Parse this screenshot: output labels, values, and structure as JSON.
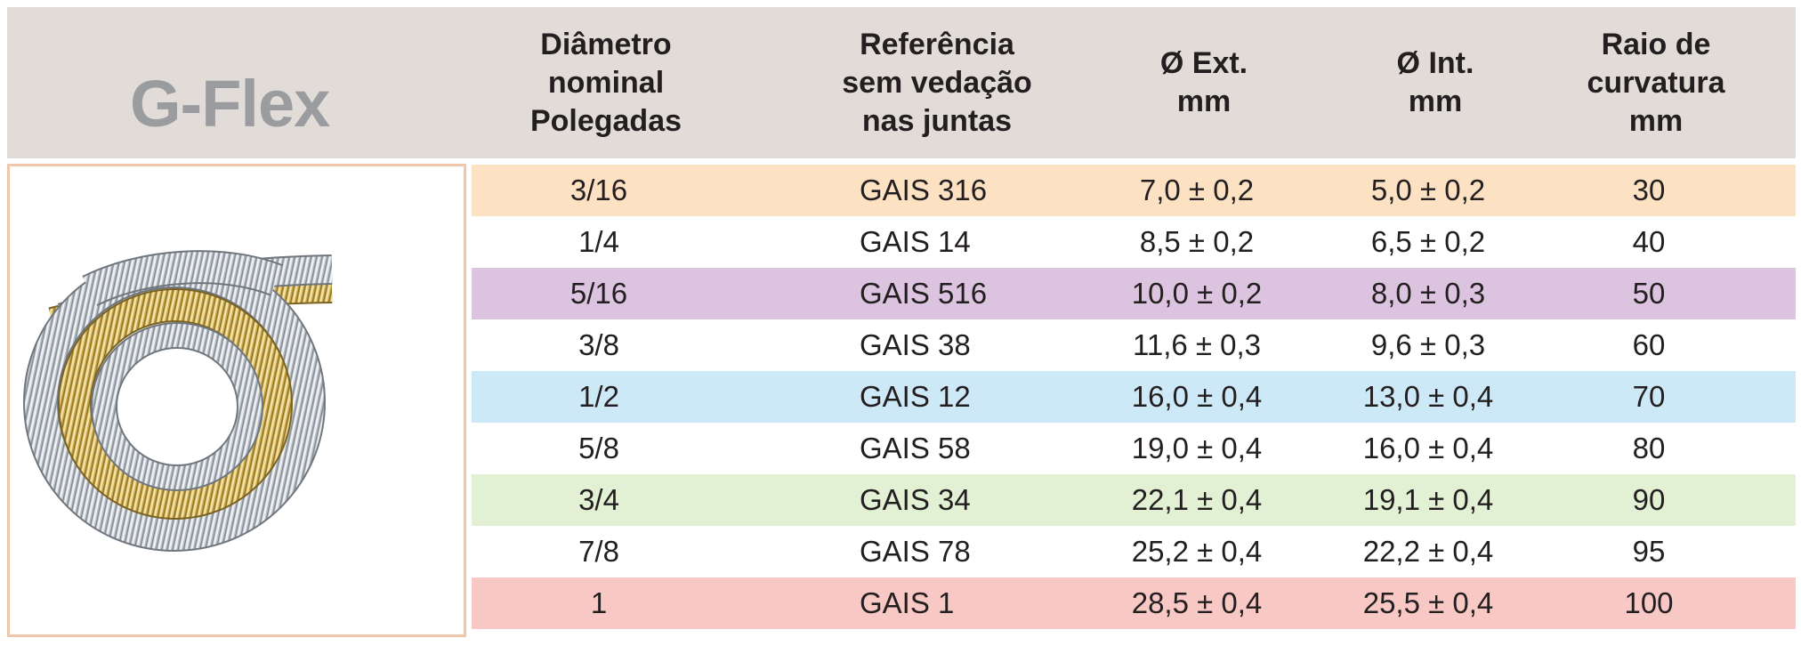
{
  "brand": "G-Flex",
  "headers": {
    "diameter": "Diâmetro\nnominal\nPolegadas",
    "reference": "Referência\nsem vedação\nnas juntas",
    "ext": "Ø Ext.\nmm",
    "int": "Ø Int.\nmm",
    "radius": "Raio de\ncurvatura\nmm"
  },
  "image": {
    "alt": "flexible-metal-hose-coil"
  },
  "colors": {
    "header_bg": "#e2dcd9",
    "brand_text": "#9a9c9f",
    "frame_border": "#f0c7ab"
  },
  "rows": [
    {
      "nominal": "3/16",
      "reference": "GAIS 316",
      "ext": "7,0 ± 0,2",
      "int": "5,0 ± 0,2",
      "radius": "30",
      "bg": "#fde1c3"
    },
    {
      "nominal": "1/4",
      "reference": "GAIS 14",
      "ext": "8,5 ± 0,2",
      "int": "6,5 ± 0,2",
      "radius": "40",
      "bg": "#ffffff"
    },
    {
      "nominal": "5/16",
      "reference": "GAIS 516",
      "ext": "10,0 ± 0,2",
      "int": "8,0 ± 0,3",
      "radius": "50",
      "bg": "#dcc4e1"
    },
    {
      "nominal": "3/8",
      "reference": "GAIS 38",
      "ext": "11,6 ± 0,3",
      "int": "9,6 ± 0,3",
      "radius": "60",
      "bg": "#ffffff"
    },
    {
      "nominal": "1/2",
      "reference": "GAIS 12",
      "ext": "16,0 ± 0,4",
      "int": "13,0 ± 0,4",
      "radius": "70",
      "bg": "#cde8f6"
    },
    {
      "nominal": "5/8",
      "reference": "GAIS 58",
      "ext": "19,0 ± 0,4",
      "int": "16,0 ± 0,4",
      "radius": "80",
      "bg": "#ffffff"
    },
    {
      "nominal": "3/4",
      "reference": "GAIS 34",
      "ext": "22,1 ± 0,4",
      "int": "19,1 ± 0,4",
      "radius": "90",
      "bg": "#e2f0d3"
    },
    {
      "nominal": "7/8",
      "reference": "GAIS 78",
      "ext": "25,2 ± 0,4",
      "int": "22,2 ± 0,4",
      "radius": "95",
      "bg": "#ffffff"
    },
    {
      "nominal": "1",
      "reference": "GAIS 1",
      "ext": "28,5 ± 0,4",
      "int": "25,5 ± 0,4",
      "radius": "100",
      "bg": "#f8c8c4"
    }
  ]
}
